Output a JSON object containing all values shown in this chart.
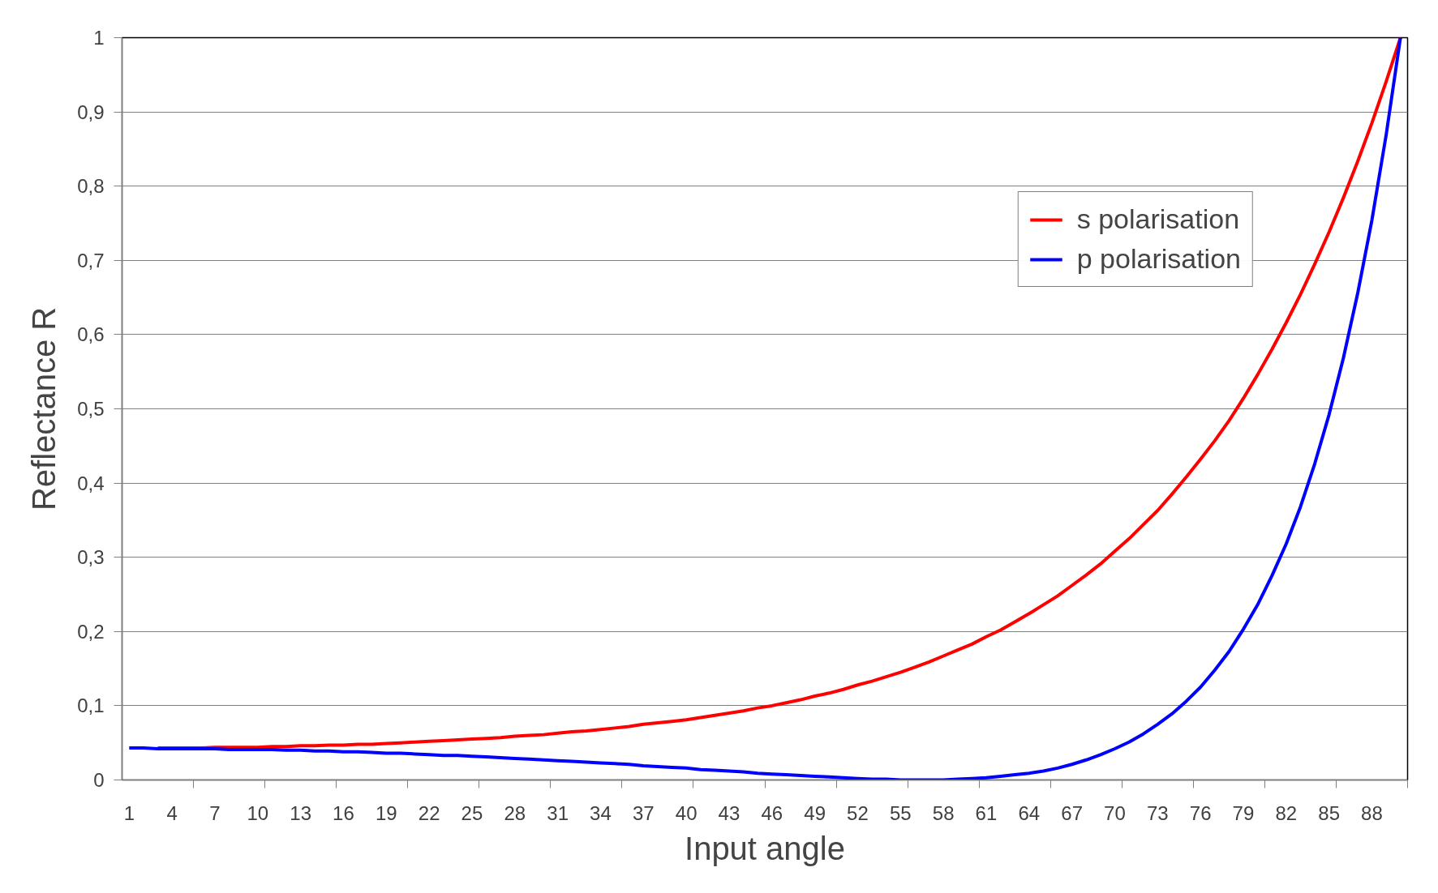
{
  "chart_data": {
    "type": "line",
    "xlabel": "Input angle",
    "ylabel": "Reflectance R",
    "categories": [
      "1",
      null,
      null,
      "4",
      null,
      null,
      "7",
      null,
      null,
      "10",
      null,
      null,
      "13",
      null,
      null,
      "16",
      null,
      null,
      "19",
      null,
      null,
      "22",
      null,
      null,
      "25",
      null,
      null,
      "28",
      null,
      null,
      "31",
      null,
      null,
      "34",
      null,
      null,
      "37",
      null,
      null,
      "40",
      null,
      null,
      "43",
      null,
      null,
      "46",
      null,
      null,
      "49",
      null,
      null,
      "52",
      null,
      null,
      "55",
      null,
      null,
      "58",
      null,
      null,
      "61",
      null,
      null,
      "64",
      null,
      null,
      "67",
      null,
      null,
      "70",
      null,
      null,
      "73",
      null,
      null,
      "76",
      null,
      null,
      "79",
      null,
      null,
      "82",
      null,
      null,
      "85",
      null,
      null,
      "88",
      null,
      null
    ],
    "series": [
      {
        "name": "s polarisation",
        "color": "#ff0000",
        "values": [
          null,
          null,
          0.043,
          0.043,
          0.043,
          0.043,
          0.044,
          0.044,
          0.044,
          0.044,
          0.045,
          0.045,
          0.046,
          0.046,
          0.047,
          0.047,
          0.048,
          0.048,
          0.049,
          0.05,
          0.051,
          0.052,
          0.053,
          0.054,
          0.055,
          0.056,
          0.057,
          0.059,
          0.06,
          0.061,
          0.063,
          0.065,
          0.066,
          0.068,
          0.07,
          0.072,
          0.075,
          0.077,
          0.079,
          0.081,
          0.084,
          0.087,
          0.09,
          0.093,
          0.097,
          0.1,
          0.104,
          0.108,
          0.113,
          0.117,
          0.122,
          0.128,
          0.133,
          0.139,
          0.145,
          0.152,
          0.159,
          0.167,
          0.175,
          0.183,
          0.193,
          0.202,
          0.213,
          0.224,
          0.236,
          0.248,
          0.262,
          0.276,
          0.291,
          0.308,
          0.325,
          0.344,
          0.363,
          0.385,
          0.408,
          0.432,
          0.457,
          0.484,
          0.514,
          0.546,
          0.58,
          0.616,
          0.654,
          0.695,
          0.738,
          0.784,
          0.833,
          0.885,
          0.941,
          1.0
        ]
      },
      {
        "name": "p polarisation",
        "color": "#0000ff",
        "values": [
          0.043,
          0.043,
          0.042,
          0.042,
          0.042,
          0.042,
          0.042,
          0.041,
          0.041,
          0.041,
          0.041,
          0.04,
          0.04,
          0.039,
          0.039,
          0.038,
          0.038,
          0.037,
          0.036,
          0.036,
          0.035,
          0.034,
          0.033,
          0.033,
          0.032,
          0.031,
          0.03,
          0.029,
          0.028,
          0.027,
          0.026,
          0.025,
          0.024,
          0.023,
          0.022,
          0.021,
          0.019,
          0.018,
          0.017,
          0.016,
          0.014,
          0.013,
          0.012,
          0.011,
          0.009,
          0.008,
          0.007,
          0.006,
          0.005,
          0.004,
          0.003,
          0.002,
          0.001,
          0.001,
          0.0,
          0.0,
          0.0,
          0.0,
          0.001,
          0.002,
          0.003,
          0.005,
          0.007,
          0.009,
          0.012,
          0.016,
          0.021,
          0.027,
          0.034,
          0.042,
          0.051,
          0.062,
          0.075,
          0.089,
          0.106,
          0.125,
          0.148,
          0.173,
          0.203,
          0.236,
          0.275,
          0.318,
          0.368,
          0.426,
          0.492,
          0.568,
          0.655,
          0.754,
          0.869,
          1.0
        ]
      }
    ],
    "ylim": [
      0,
      1
    ],
    "yticks": [
      0,
      {
        "value": 0.1,
        "label": "0,1"
      },
      {
        "value": 0.2,
        "label": "0,2"
      },
      {
        "value": 0.3,
        "label": "0,3"
      },
      {
        "value": 0.4,
        "label": "0,4"
      },
      {
        "value": 0.5,
        "label": "0,5"
      },
      {
        "value": 0.6,
        "label": "0,6"
      },
      {
        "value": 0.7,
        "label": "0,7"
      },
      {
        "value": 0.8,
        "label": "0,8"
      },
      {
        "value": 0.9,
        "label": "0,9"
      },
      1
    ],
    "grid": "y",
    "legend": "top right",
    "marker": "none",
    "line_style": "solid"
  }
}
